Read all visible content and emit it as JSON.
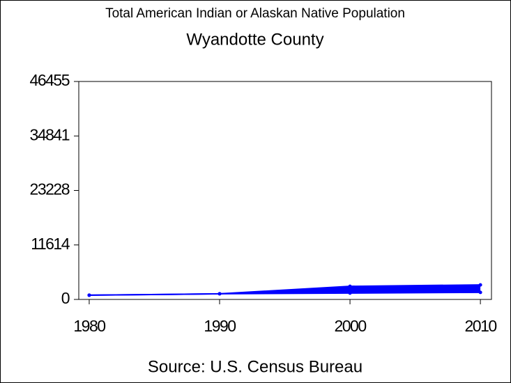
{
  "chart_data": {
    "type": "line",
    "title": "Total American Indian or Alaskan Native Population",
    "subtitle": "Wyandotte County",
    "source": "Source: U.S. Census Bureau",
    "x": [
      1980,
      1990,
      2000,
      2010
    ],
    "series": [
      {
        "color": "#0000ff",
        "values": [
          900,
          1200,
          2800,
          3100
        ]
      },
      {
        "color": "#0000ff",
        "values": [
          900,
          1200,
          1350,
          1500
        ]
      }
    ],
    "fill_between": true,
    "xlim": [
      1979.2,
      2010.85
    ],
    "xticks": [
      1980,
      1990,
      2000,
      2010
    ],
    "ylim": [
      0,
      46455
    ],
    "yticks": [
      0,
      11614,
      23228,
      34841,
      46455
    ]
  }
}
